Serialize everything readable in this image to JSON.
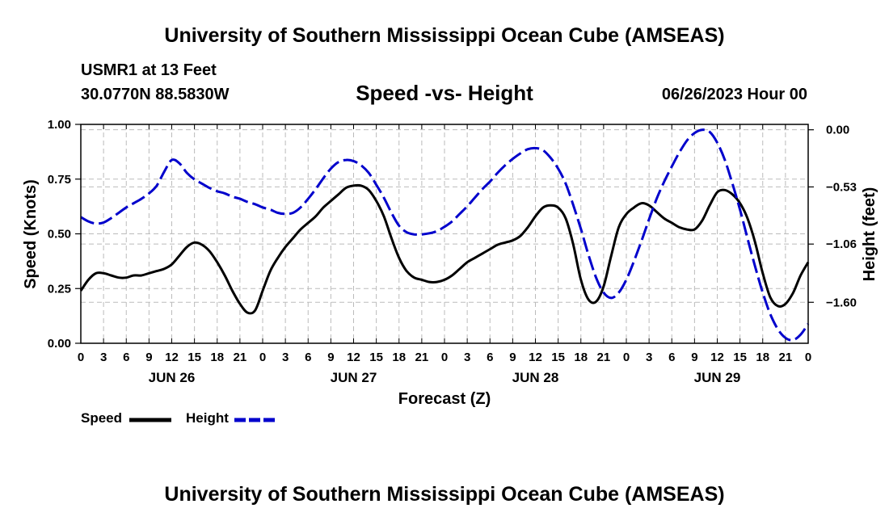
{
  "header": {
    "title": "University of Southern Mississippi Ocean Cube (AMSEAS)",
    "station": "USMR1 at 13 Feet",
    "coords": "30.0770N  88.5830W",
    "subtitle": "Speed -vs- Height",
    "datetime": "06/26/2023 Hour 00"
  },
  "footer": {
    "title": "University of Southern Mississippi Ocean Cube (AMSEAS)"
  },
  "legend": {
    "speed": "Speed",
    "height": "Height"
  },
  "colors": {
    "speed": "#000000",
    "height": "#0000cc",
    "grid": "#bbbbbb"
  },
  "chart_data": {
    "type": "line",
    "title": "Speed -vs- Height",
    "xlabel": "Forecast (Z)",
    "ylabel": "Speed (Knots)",
    "y2label": "Height (feet)",
    "xlim": [
      0,
      96
    ],
    "ylim": [
      0,
      1
    ],
    "y2lim": [
      -1.98,
      0.05
    ],
    "x_tick_labels": [
      "0",
      "3",
      "6",
      "9",
      "12",
      "15",
      "18",
      "21",
      "0",
      "3",
      "6",
      "9",
      "12",
      "15",
      "18",
      "21",
      "0",
      "3",
      "6",
      "9",
      "12",
      "15",
      "18",
      "21",
      "0",
      "3",
      "6",
      "9",
      "12",
      "15",
      "18",
      "21",
      "0"
    ],
    "day_labels": [
      {
        "x": 12,
        "label": "JUN 26"
      },
      {
        "x": 36,
        "label": "JUN 27"
      },
      {
        "x": 60,
        "label": "JUN 28"
      },
      {
        "x": 84,
        "label": "JUN 29"
      }
    ],
    "y_ticks": [
      "0.00",
      "0.25",
      "0.50",
      "0.75",
      "1.00"
    ],
    "y_tick_values": [
      0,
      0.25,
      0.5,
      0.75,
      1.0
    ],
    "y2_ticks": [
      "0.00",
      "−0.53",
      "−1.06",
      "−1.60"
    ],
    "y2_tick_values": [
      0,
      -0.53,
      -1.06,
      -1.6
    ],
    "series": [
      {
        "name": "Speed",
        "axis": "left",
        "dash": false,
        "x": [
          0,
          1,
          2,
          3,
          4,
          5,
          6,
          7,
          8,
          9,
          10,
          11,
          12,
          13,
          14,
          15,
          16,
          17,
          18,
          19,
          20,
          21,
          22,
          23,
          24,
          25,
          26,
          27,
          28,
          29,
          30,
          31,
          32,
          33,
          34,
          35,
          36,
          37,
          38,
          39,
          40,
          41,
          42,
          43,
          44,
          45,
          46,
          47,
          48,
          49,
          50,
          51,
          52,
          53,
          54,
          55,
          56,
          57,
          58,
          59,
          60,
          61,
          62,
          63,
          64,
          65,
          66,
          67,
          68,
          69,
          70,
          71,
          72,
          73,
          74,
          75,
          76,
          77,
          78,
          79,
          80,
          81,
          82,
          83,
          84,
          85,
          86,
          87,
          88,
          89,
          90,
          91,
          92,
          93,
          94,
          95,
          96
        ],
        "values": [
          0.24,
          0.29,
          0.32,
          0.32,
          0.31,
          0.3,
          0.3,
          0.31,
          0.31,
          0.32,
          0.33,
          0.34,
          0.36,
          0.4,
          0.44,
          0.46,
          0.45,
          0.42,
          0.37,
          0.31,
          0.24,
          0.18,
          0.14,
          0.15,
          0.24,
          0.33,
          0.39,
          0.44,
          0.48,
          0.52,
          0.55,
          0.58,
          0.62,
          0.65,
          0.68,
          0.71,
          0.72,
          0.72,
          0.7,
          0.65,
          0.58,
          0.48,
          0.39,
          0.33,
          0.3,
          0.29,
          0.28,
          0.28,
          0.29,
          0.31,
          0.34,
          0.37,
          0.39,
          0.41,
          0.43,
          0.45,
          0.46,
          0.47,
          0.49,
          0.53,
          0.58,
          0.62,
          0.63,
          0.62,
          0.57,
          0.45,
          0.29,
          0.2,
          0.19,
          0.26,
          0.4,
          0.53,
          0.59,
          0.62,
          0.64,
          0.63,
          0.6,
          0.57,
          0.55,
          0.53,
          0.52,
          0.52,
          0.56,
          0.63,
          0.69,
          0.7,
          0.68,
          0.64,
          0.57,
          0.46,
          0.32,
          0.21,
          0.17,
          0.18,
          0.23,
          0.31,
          0.37
        ]
      },
      {
        "name": "Height",
        "axis": "right",
        "dash": true,
        "x": [
          0,
          1,
          2,
          3,
          4,
          5,
          6,
          7,
          8,
          9,
          10,
          11,
          12,
          13,
          14,
          15,
          16,
          17,
          18,
          19,
          20,
          21,
          22,
          23,
          24,
          25,
          26,
          27,
          28,
          29,
          30,
          31,
          32,
          33,
          34,
          35,
          36,
          37,
          38,
          39,
          40,
          41,
          42,
          43,
          44,
          45,
          46,
          47,
          48,
          49,
          50,
          51,
          52,
          53,
          54,
          55,
          56,
          57,
          58,
          59,
          60,
          61,
          62,
          63,
          64,
          65,
          66,
          67,
          68,
          69,
          70,
          71,
          72,
          73,
          74,
          75,
          76,
          77,
          78,
          79,
          80,
          81,
          82,
          83,
          84,
          85,
          86,
          87,
          88,
          89,
          90,
          91,
          92,
          93,
          94,
          95,
          96
        ],
        "values": [
          -0.81,
          -0.85,
          -0.87,
          -0.86,
          -0.82,
          -0.77,
          -0.72,
          -0.68,
          -0.64,
          -0.59,
          -0.52,
          -0.39,
          -0.28,
          -0.31,
          -0.4,
          -0.46,
          -0.5,
          -0.54,
          -0.57,
          -0.59,
          -0.62,
          -0.64,
          -0.67,
          -0.69,
          -0.72,
          -0.74,
          -0.77,
          -0.78,
          -0.77,
          -0.72,
          -0.64,
          -0.55,
          -0.45,
          -0.36,
          -0.3,
          -0.28,
          -0.29,
          -0.33,
          -0.4,
          -0.51,
          -0.63,
          -0.77,
          -0.89,
          -0.95,
          -0.97,
          -0.97,
          -0.96,
          -0.94,
          -0.9,
          -0.85,
          -0.78,
          -0.71,
          -0.63,
          -0.55,
          -0.48,
          -0.4,
          -0.33,
          -0.27,
          -0.22,
          -0.18,
          -0.17,
          -0.19,
          -0.26,
          -0.36,
          -0.5,
          -0.7,
          -0.92,
          -1.16,
          -1.37,
          -1.51,
          -1.56,
          -1.51,
          -1.39,
          -1.22,
          -1.03,
          -0.83,
          -0.64,
          -0.48,
          -0.34,
          -0.21,
          -0.1,
          -0.03,
          0.0,
          -0.02,
          -0.12,
          -0.28,
          -0.5,
          -0.74,
          -1.01,
          -1.27,
          -1.51,
          -1.71,
          -1.85,
          -1.93,
          -1.95,
          -1.9,
          -1.8
        ]
      }
    ]
  }
}
